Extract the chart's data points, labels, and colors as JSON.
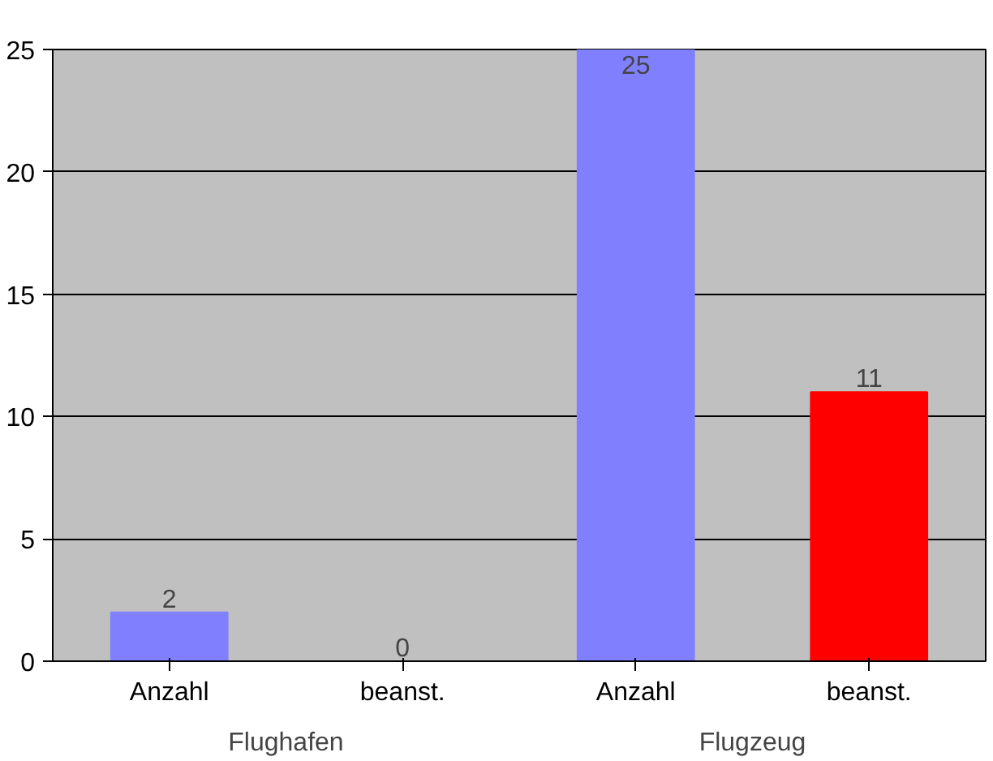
{
  "chart_data": {
    "type": "bar",
    "categories": [
      "Anzahl",
      "beanst.",
      "Anzahl",
      "beanst."
    ],
    "values": [
      2,
      0,
      25,
      11
    ],
    "colors": [
      "#8080ff",
      "#ff0000",
      "#8080ff",
      "#ff0000"
    ],
    "ylim": [
      0,
      25
    ],
    "yticks": [
      0,
      5,
      10,
      15,
      20,
      25
    ],
    "grid": "y",
    "data_labels": true,
    "annotations": [
      "Flughafen",
      "Flugzeug"
    ]
  }
}
